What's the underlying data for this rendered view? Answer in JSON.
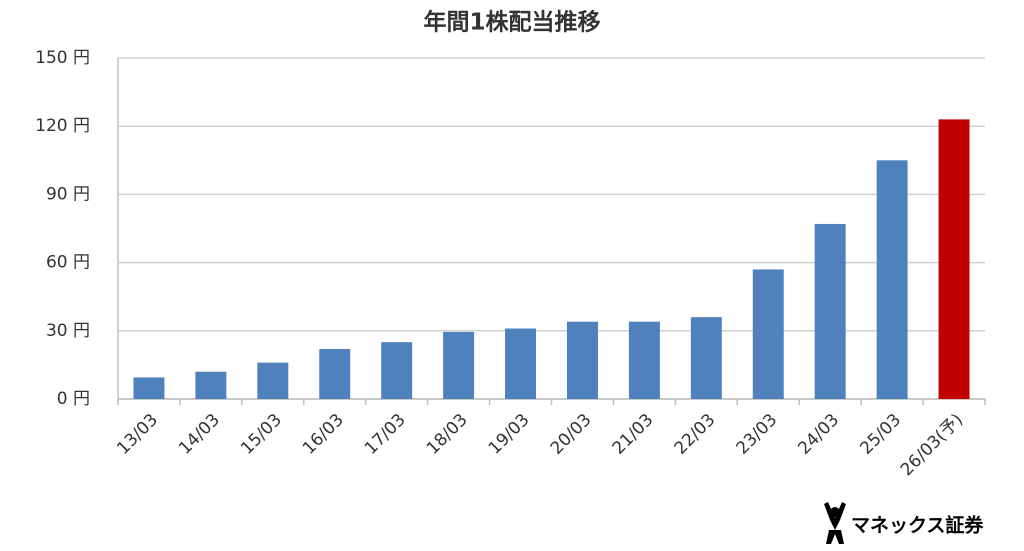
{
  "chart_data": {
    "type": "bar",
    "title": "年間1株配当推移",
    "categories": [
      "13/03",
      "14/03",
      "15/03",
      "16/03",
      "17/03",
      "18/03",
      "19/03",
      "20/03",
      "21/03",
      "22/03",
      "23/03",
      "24/03",
      "25/03",
      "26/03(予)"
    ],
    "values": [
      9.5,
      12,
      16,
      22,
      25,
      29.5,
      31,
      34,
      34,
      36,
      57,
      77,
      105,
      123
    ],
    "colors": [
      "#4f81bd",
      "#4f81bd",
      "#4f81bd",
      "#4f81bd",
      "#4f81bd",
      "#4f81bd",
      "#4f81bd",
      "#4f81bd",
      "#4f81bd",
      "#4f81bd",
      "#4f81bd",
      "#4f81bd",
      "#4f81bd",
      "#c00000"
    ],
    "ylim": [
      0,
      150
    ],
    "yticks": [
      {
        "value": 0,
        "label": "0 円"
      },
      {
        "value": 30,
        "label": "30 円"
      },
      {
        "value": 60,
        "label": "60 円"
      },
      {
        "value": 90,
        "label": "90 円"
      },
      {
        "value": 120,
        "label": "120 円"
      },
      {
        "value": 150,
        "label": "150 円"
      }
    ],
    "grid": true,
    "logo": "マネックス証券"
  }
}
